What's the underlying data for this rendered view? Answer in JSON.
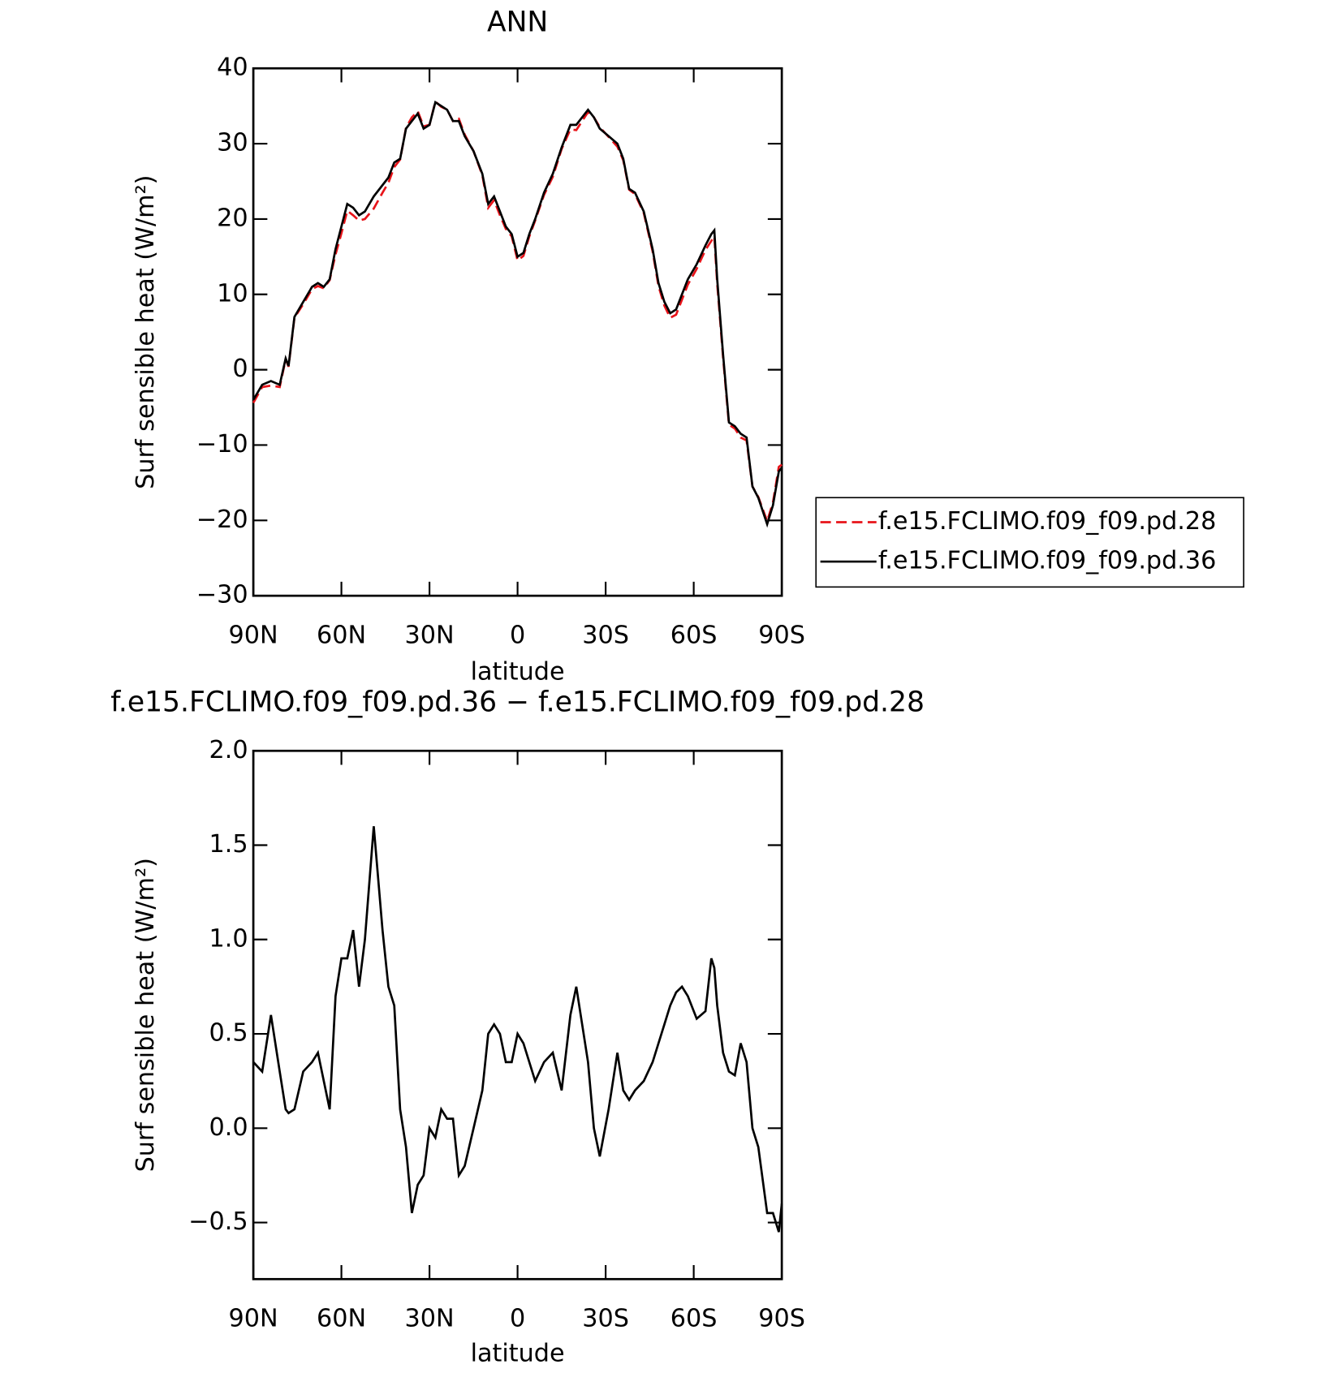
{
  "chart_data": [
    {
      "type": "line",
      "title": "ANN",
      "x_label": "latitude",
      "y_label": "Surf sensible heat (W/m²)",
      "xlim": [
        90,
        -90
      ],
      "ylim": [
        -30,
        40
      ],
      "xticks": [
        {
          "value": 90,
          "label": "90N"
        },
        {
          "value": 60,
          "label": "60N"
        },
        {
          "value": 30,
          "label": "30N"
        },
        0,
        {
          "value": -30,
          "label": "30S"
        },
        {
          "value": -60,
          "label": "60S"
        },
        {
          "value": -90,
          "label": "90S"
        }
      ],
      "yticks": [
        {
          "value": -30,
          "label": "−30"
        },
        {
          "value": -20,
          "label": "−20"
        },
        {
          "value": -10,
          "label": "−10"
        },
        0,
        10,
        20,
        30,
        40
      ],
      "legend": "right",
      "x": [
        90,
        87,
        84,
        81,
        79,
        78,
        76,
        73,
        70,
        68,
        66,
        64,
        62,
        60,
        58,
        56,
        54,
        52,
        49,
        46,
        44,
        42,
        40,
        38,
        36,
        34,
        32,
        30,
        28,
        26,
        24,
        22,
        20,
        18,
        15,
        12,
        10,
        8,
        6,
        4,
        2,
        0,
        -2,
        -4,
        -6,
        -9,
        -12,
        -15,
        -18,
        -20,
        -22,
        -24,
        -26,
        -28,
        -31,
        -34,
        -36,
        -38,
        -40,
        -43,
        -46,
        -48,
        -50,
        -52,
        -54,
        -56,
        -58,
        -61,
        -64,
        -66,
        -67,
        -68,
        -70,
        -72,
        -74,
        -76,
        -78,
        -80,
        -82,
        -85,
        -87,
        -89,
        -90
      ],
      "series": [
        {
          "name": "f.e15.FCLIMO.f09_f09.pd.28",
          "color": "#e8141a",
          "dashed": true,
          "values": [
            -4.4,
            -2.3,
            -2.1,
            -2.3,
            1.4,
            0.4,
            6.9,
            8.7,
            10.7,
            11.1,
            10.8,
            11.9,
            15.3,
            18.1,
            21.1,
            20.5,
            19.8,
            20.0,
            21.4,
            23.5,
            24.8,
            26.9,
            27.9,
            32.1,
            33.5,
            34.3,
            32.3,
            32.5,
            35.6,
            34.9,
            34.5,
            33.0,
            33.3,
            31.2,
            29.0,
            25.8,
            21.5,
            22.5,
            20.5,
            18.7,
            17.7,
            14.5,
            15.1,
            17.7,
            19.8,
            23.2,
            25.6,
            29.3,
            31.9,
            31.8,
            33.0,
            34.2,
            33.5,
            32.2,
            30.9,
            29.6,
            27.8,
            23.9,
            23.3,
            20.8,
            15.7,
            11.1,
            8.5,
            6.9,
            7.3,
            9.3,
            11.3,
            13.4,
            15.9,
            17.1,
            17.7,
            11.4,
            1.6,
            -7.3,
            -7.8,
            -9.0,
            -9.4,
            -15.5,
            -16.9,
            -20.1,
            -17.6,
            -12.9,
            -12.6
          ]
        },
        {
          "name": "f.e15.FCLIMO.f09_f09.pd.36",
          "color": "#000000",
          "dashed": false,
          "values": [
            -4,
            -2,
            -1.5,
            -2,
            1.5,
            0.5,
            7,
            9,
            11,
            11.5,
            11,
            12,
            16,
            19,
            22,
            21.5,
            20.5,
            21,
            23,
            24.5,
            25.5,
            27.5,
            28,
            32,
            33,
            34,
            32,
            32.5,
            35.5,
            35,
            34.5,
            33,
            33,
            31,
            29,
            26,
            22,
            23,
            21,
            19,
            18,
            15,
            15.5,
            18,
            20,
            23.5,
            26,
            29.5,
            32.5,
            32.5,
            33.5,
            34.5,
            33.5,
            32,
            31,
            30,
            28,
            24,
            23.5,
            21,
            16,
            11.5,
            9,
            7.5,
            8,
            10,
            12,
            14,
            16.5,
            18,
            18.5,
            12,
            2,
            -7,
            -7.5,
            -8.5,
            -9,
            -15.5,
            -17,
            -20.5,
            -18,
            -13.5,
            -13
          ]
        }
      ]
    },
    {
      "type": "line",
      "title": "f.e15.FCLIMO.f09_f09.pd.36 − f.e15.FCLIMO.f09_f09.pd.28",
      "x_label": "latitude",
      "y_label": "Surf sensible heat (W/m²)",
      "xlim": [
        90,
        -90
      ],
      "ylim": [
        -0.8,
        2.0
      ],
      "xticks": [
        {
          "value": 90,
          "label": "90N"
        },
        {
          "value": 60,
          "label": "60N"
        },
        {
          "value": 30,
          "label": "30N"
        },
        0,
        {
          "value": -30,
          "label": "30S"
        },
        {
          "value": -60,
          "label": "60S"
        },
        {
          "value": -90,
          "label": "90S"
        }
      ],
      "yticks": [
        {
          "value": -0.5,
          "label": "−0.5"
        },
        {
          "value": 0,
          "label": "0.0"
        },
        0.5,
        {
          "value": 1,
          "label": "1.0"
        },
        1.5,
        {
          "value": 2,
          "label": "2.0"
        }
      ],
      "x": [
        90,
        87,
        84,
        81,
        79,
        78,
        76,
        73,
        70,
        68,
        66,
        64,
        62,
        60,
        58,
        56,
        54,
        52,
        49,
        46,
        44,
        42,
        40,
        38,
        36,
        34,
        32,
        30,
        28,
        26,
        24,
        22,
        20,
        18,
        15,
        12,
        10,
        8,
        6,
        4,
        2,
        0,
        -2,
        -4,
        -6,
        -9,
        -12,
        -15,
        -18,
        -20,
        -22,
        -24,
        -26,
        -28,
        -31,
        -34,
        -36,
        -38,
        -40,
        -43,
        -46,
        -48,
        -50,
        -52,
        -54,
        -56,
        -58,
        -61,
        -64,
        -66,
        -67,
        -68,
        -70,
        -72,
        -74,
        -76,
        -78,
        -80,
        -82,
        -85,
        -87,
        -89,
        -90
      ],
      "color": "#000000",
      "values": [
        0.35,
        0.3,
        0.6,
        0.3,
        0.1,
        0.08,
        0.1,
        0.3,
        0.35,
        0.4,
        0.25,
        0.1,
        0.7,
        0.9,
        0.9,
        1.05,
        0.75,
        1.0,
        1.6,
        1.05,
        0.75,
        0.65,
        0.1,
        -0.1,
        -0.45,
        -0.3,
        -0.25,
        0.0,
        -0.05,
        0.1,
        0.05,
        0.05,
        -0.25,
        -0.2,
        0.0,
        0.2,
        0.5,
        0.55,
        0.5,
        0.35,
        0.35,
        0.5,
        0.45,
        0.35,
        0.25,
        0.35,
        0.4,
        0.2,
        0.6,
        0.75,
        0.55,
        0.35,
        0.0,
        -0.15,
        0.1,
        0.4,
        0.2,
        0.15,
        0.2,
        0.25,
        0.35,
        0.45,
        0.55,
        0.65,
        0.72,
        0.75,
        0.7,
        0.58,
        0.62,
        0.9,
        0.85,
        0.65,
        0.4,
        0.3,
        0.28,
        0.45,
        0.35,
        0.0,
        -0.1,
        -0.45,
        -0.45,
        -0.55,
        -0.4
      ]
    }
  ]
}
